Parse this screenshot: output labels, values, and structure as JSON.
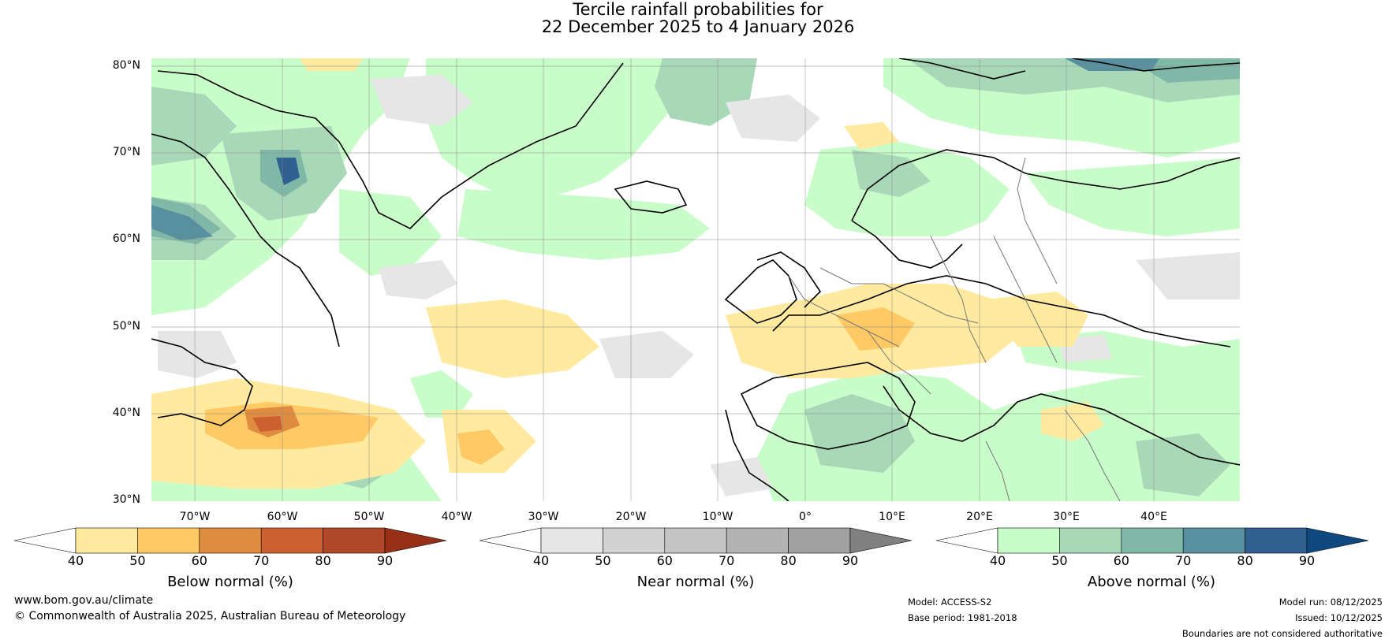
{
  "title": {
    "line1": "Tercile rainfall probabilities for",
    "line2": "22 December 2025 to 4 January 2026"
  },
  "map": {
    "lat_labels": [
      "80°N",
      "70°N",
      "60°N",
      "50°N",
      "40°N",
      "30°N"
    ],
    "lon_labels": [
      "70°W",
      "60°W",
      "50°W",
      "40°W",
      "30°W",
      "20°W",
      "10°W",
      "0°",
      "10°E",
      "20°E",
      "30°E",
      "40°E"
    ]
  },
  "colorbars": [
    {
      "label": "Below normal (%)",
      "ticks": [
        "40",
        "50",
        "60",
        "70",
        "80",
        "90"
      ],
      "colors": [
        "#ffffff",
        "#ffeaa0",
        "#ffc965",
        "#e08c40",
        "#cc6030",
        "#b04828",
        "#983018"
      ]
    },
    {
      "label": "Near normal (%)",
      "ticks": [
        "40",
        "50",
        "60",
        "70",
        "80",
        "90"
      ],
      "colors": [
        "#ffffff",
        "#e6e6e6",
        "#d2d2d2",
        "#c4c4c4",
        "#b2b2b2",
        "#a0a0a0",
        "#808080"
      ]
    },
    {
      "label": "Above normal (%)",
      "ticks": [
        "40",
        "50",
        "60",
        "70",
        "80",
        "90"
      ],
      "colors": [
        "#ffffff",
        "#c8fcc8",
        "#a8d8b8",
        "#80b8a8",
        "#5890a0",
        "#306090",
        "#104880"
      ]
    }
  ],
  "footer": {
    "website": "www.bom.gov.au/climate",
    "copyright": "© Commonwealth of Australia 2025, Australian Bureau of Meteorology",
    "model": "Model: ACCESS-S2",
    "base_period": "Base period: 1981-2018",
    "model_run": "Model run: 08/12/2025",
    "issued": "Issued: 10/12/2025",
    "disclaimer": "Boundaries are not considered authoritative"
  }
}
